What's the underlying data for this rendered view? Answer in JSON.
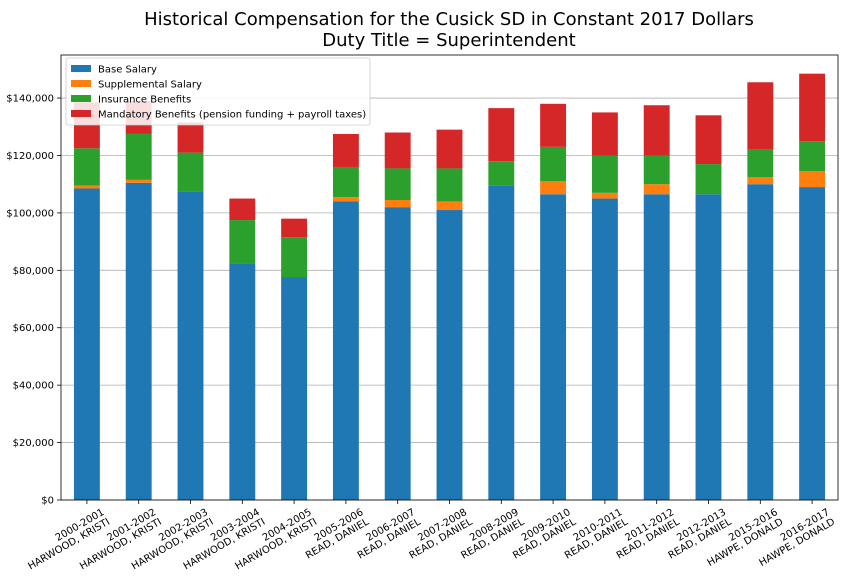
{
  "chart_data": {
    "type": "bar",
    "stacked": true,
    "title": "Historical Compensation for the Cusick SD in Constant 2017 Dollars",
    "subtitle": "Duty Title = Superintendent",
    "xlabel": "",
    "ylabel": "",
    "ylim": [
      0,
      155000
    ],
    "yticks": [
      0,
      20000,
      40000,
      60000,
      80000,
      100000,
      120000,
      140000
    ],
    "ytick_labels": [
      "$0",
      "$20,000",
      "$40,000",
      "$60,000",
      "$80,000",
      "$100,000",
      "$120,000",
      "$140,000"
    ],
    "grid": "horizontal",
    "legend_position": "top-left",
    "categories": [
      [
        "2000-2001",
        "HARWOOD, KRISTI"
      ],
      [
        "2001-2002",
        "HARWOOD, KRISTI"
      ],
      [
        "2002-2003",
        "HARWOOD, KRISTI"
      ],
      [
        "2003-2004",
        "HARWOOD, KRISTI"
      ],
      [
        "2004-2005",
        "HARWOOD, KRISTI"
      ],
      [
        "2005-2006",
        "READ, DANIEL"
      ],
      [
        "2006-2007",
        "READ, DANIEL"
      ],
      [
        "2007-2008",
        "READ, DANIEL"
      ],
      [
        "2008-2009",
        "READ, DANIEL"
      ],
      [
        "2009-2010",
        "READ, DANIEL"
      ],
      [
        "2010-2011",
        "READ, DANIEL"
      ],
      [
        "2011-2012",
        "READ, DANIEL"
      ],
      [
        "2012-2013",
        "READ, DANIEL"
      ],
      [
        "2015-2016",
        "HAWPE, DONALD"
      ],
      [
        "2016-2017",
        "HAWPE, DONALD"
      ]
    ],
    "series": [
      {
        "name": "Base Salary",
        "color": "#1f77b4",
        "values": [
          108500,
          110500,
          107500,
          82500,
          77500,
          104000,
          102000,
          101000,
          109500,
          106500,
          105000,
          106500,
          106500,
          110000,
          109000
        ]
      },
      {
        "name": "Supplemental Salary",
        "color": "#ff7f0e",
        "values": [
          1000,
          1000,
          0,
          0,
          0,
          1500,
          2500,
          3000,
          0,
          4500,
          2000,
          3500,
          0,
          2500,
          5500
        ]
      },
      {
        "name": "Insurance Benefits",
        "color": "#2ca02c",
        "values": [
          13000,
          16000,
          13500,
          15000,
          14000,
          10500,
          11000,
          11500,
          8500,
          12000,
          13000,
          10000,
          10500,
          9500,
          10500
        ]
      },
      {
        "name": "Mandatory Benefits (pension funding + payroll taxes)",
        "color": "#d62728",
        "values": [
          16000,
          11500,
          10500,
          7500,
          6500,
          11500,
          12500,
          13500,
          18500,
          15000,
          15000,
          17500,
          17000,
          23500,
          23500
        ]
      }
    ]
  }
}
